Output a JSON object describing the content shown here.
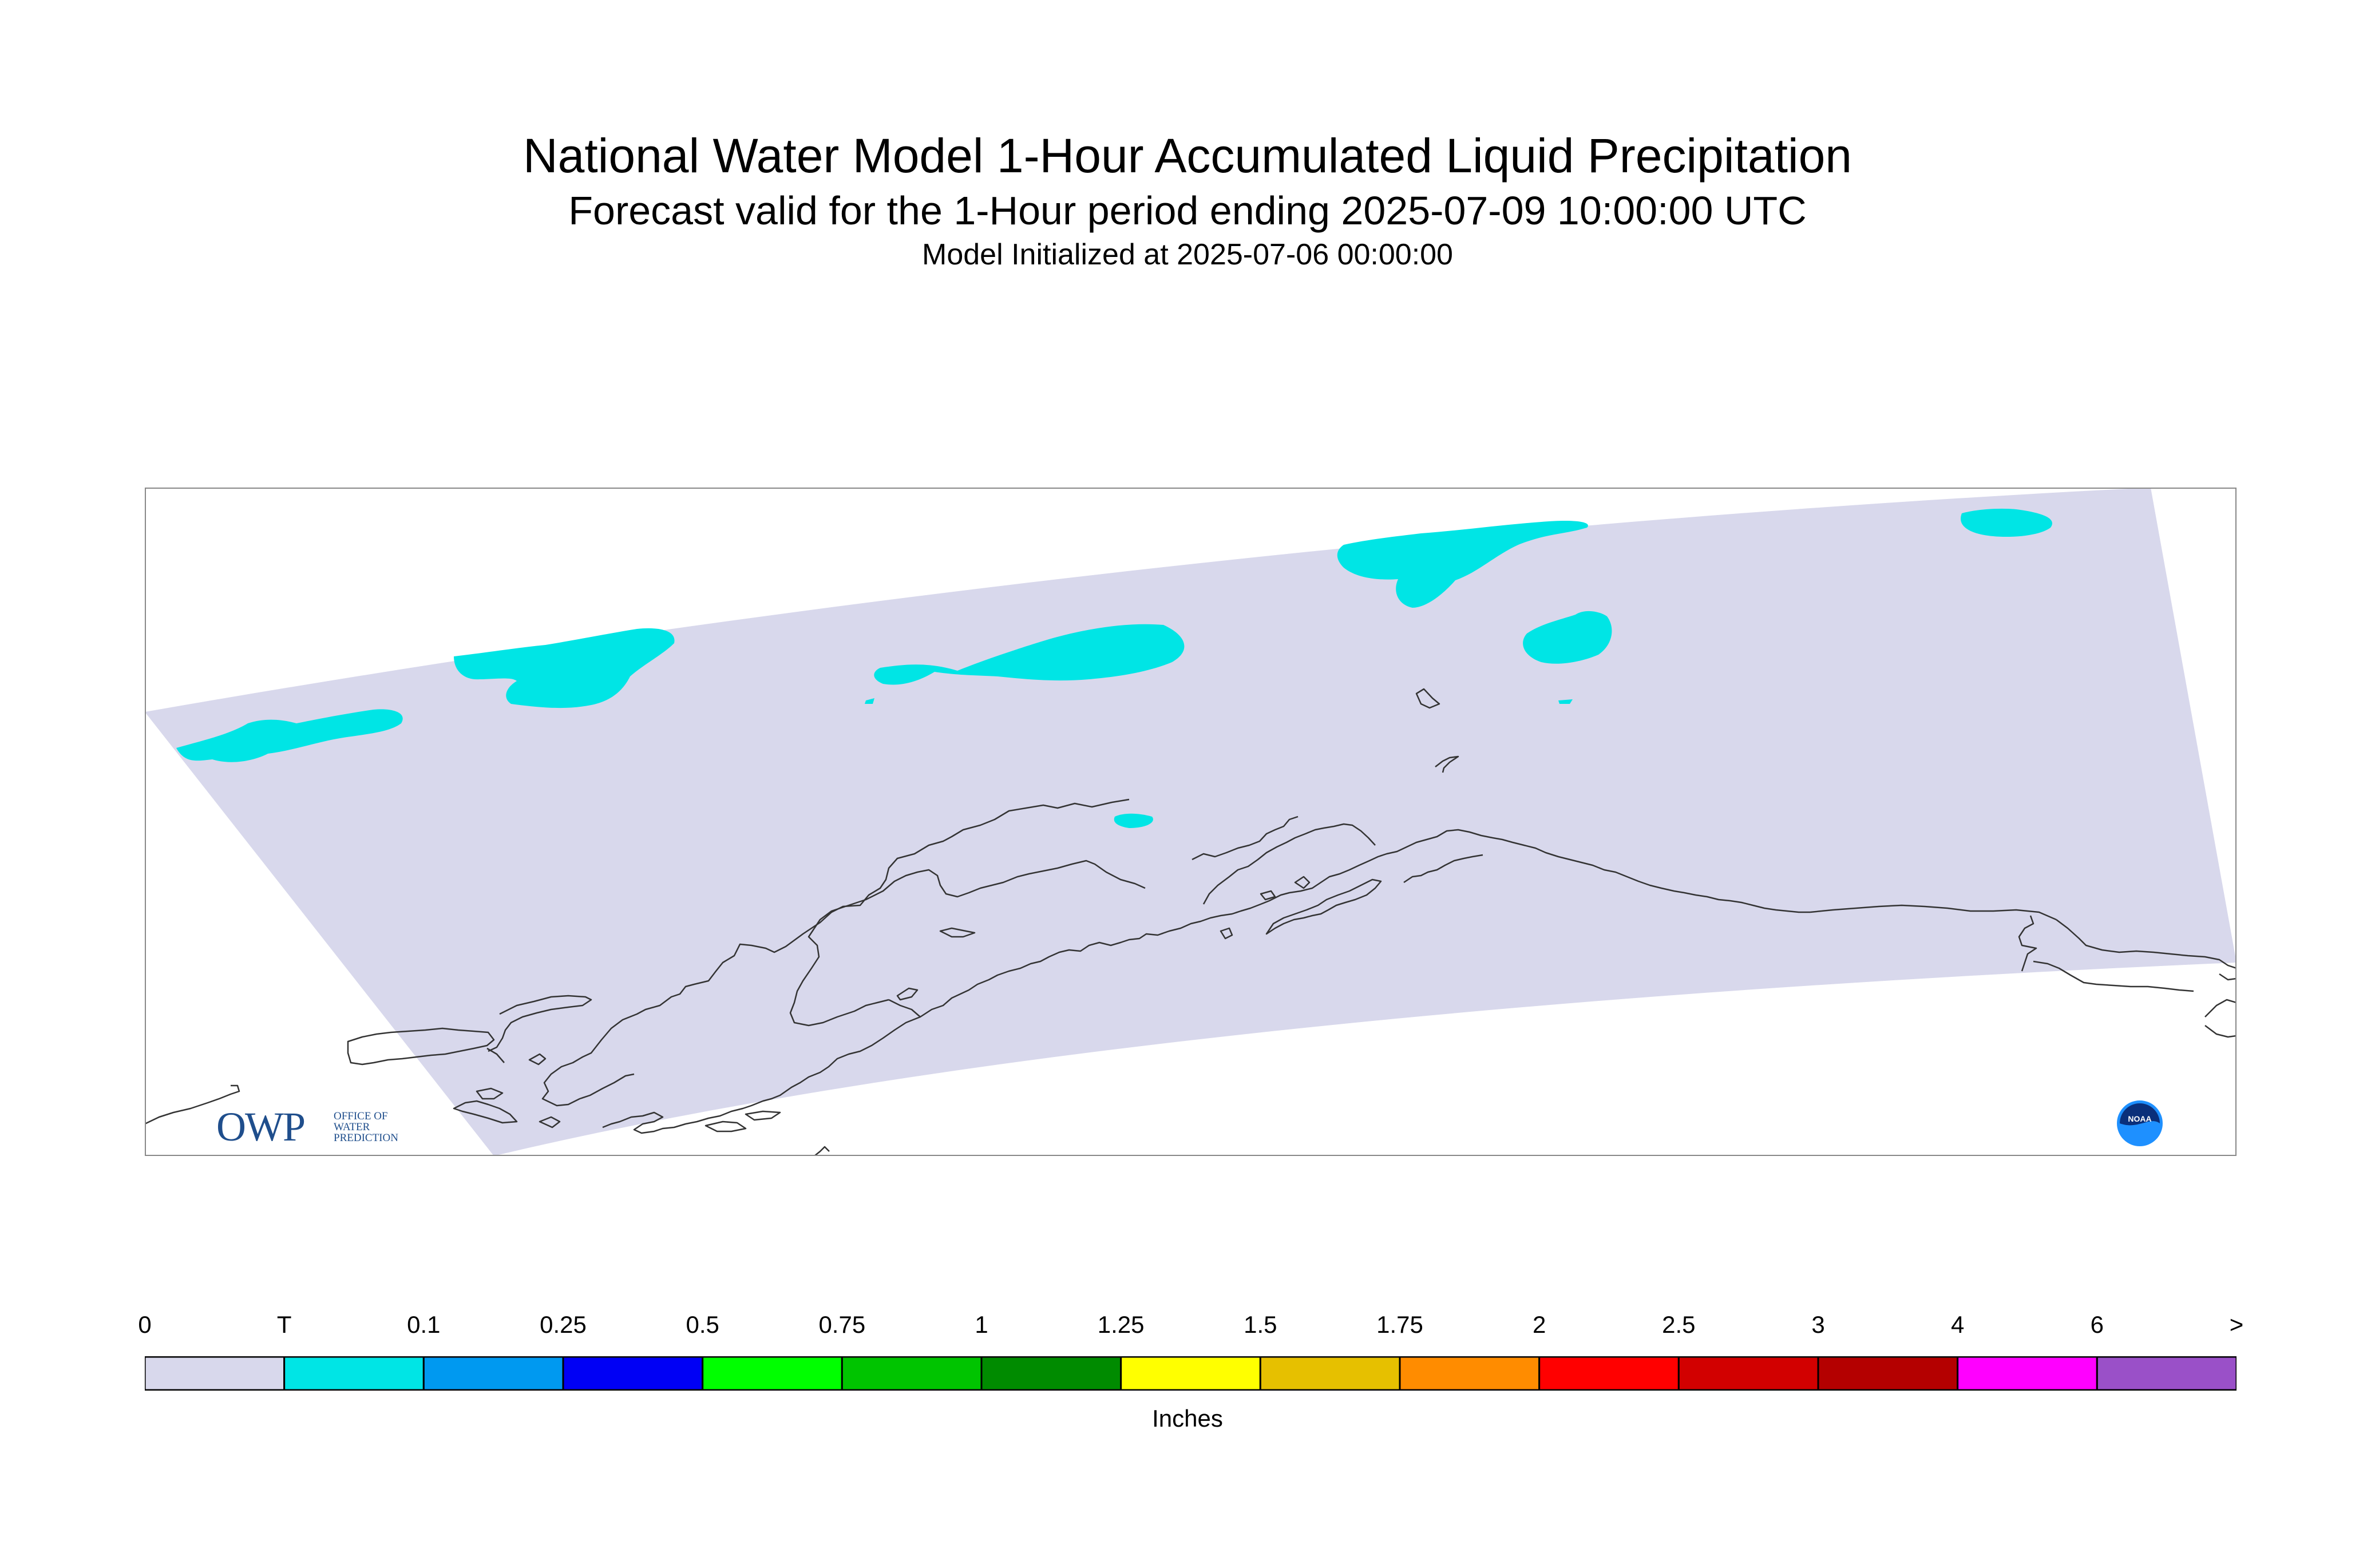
{
  "title": "National Water Model 1-Hour Accumulated Liquid Precipitation",
  "subtitle": "Forecast valid for the 1-Hour period ending 2025-07-09 10:00:00 UTC",
  "init_line": "Model Initialized at 2025-07-06 00:00:00",
  "legend": {
    "unit": "Inches",
    "labels": [
      "0",
      "T",
      "0.1",
      "0.25",
      "0.5",
      "0.75",
      "1",
      "1.25",
      "1.5",
      "1.75",
      "2",
      "2.5",
      "3",
      "4",
      "6",
      ">"
    ],
    "colors": [
      "#d8d8ec",
      "#00e5e5",
      "#0099f0",
      "#0000f5",
      "#00ff00",
      "#00c400",
      "#008b00",
      "#ffff00",
      "#e6c000",
      "#ff8c00",
      "#ff0000",
      "#d20000",
      "#b40000",
      "#ff00ff",
      "#9a50c8"
    ]
  },
  "colors": {
    "domain_fill": "#d8d8ec",
    "trace_fill": "#00e5e5",
    "coastline": "#333333",
    "frame": "#888888"
  },
  "logos": {
    "owp_letters": "OWP",
    "owp_text": "OFFICE OF\nWATER\nPREDICTION",
    "noaa_text": "NOAA"
  }
}
